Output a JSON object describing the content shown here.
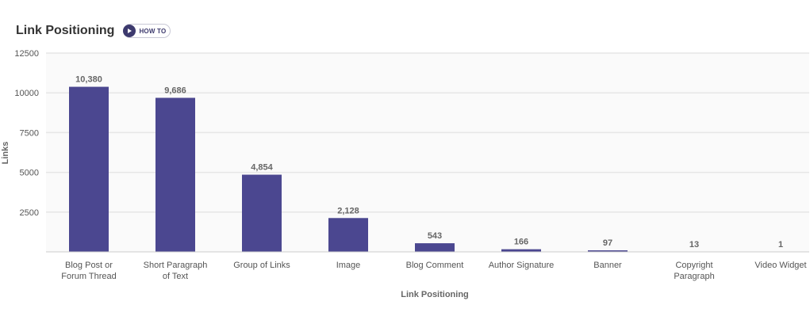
{
  "header": {
    "title": "Link Positioning",
    "howto_label": "HOW TO",
    "howto_icon": "play-icon"
  },
  "colors": {
    "bar": "#4b4790",
    "grid": "#e6e6e6",
    "plot_bg": "#fafafa"
  },
  "chart_data": {
    "type": "bar",
    "xlabel": "Link Positioning",
    "ylabel": "Links",
    "ylim": [
      0,
      12500
    ],
    "yticks": [
      2500,
      5000,
      7500,
      10000,
      12500
    ],
    "grid": true,
    "categories": [
      [
        "Blog Post or",
        "Forum Thread"
      ],
      [
        "Short Paragraph",
        "of Text"
      ],
      [
        "Group of Links"
      ],
      [
        "Image"
      ],
      [
        "Blog Comment"
      ],
      [
        "Author Signature"
      ],
      [
        "Banner"
      ],
      [
        "Copyright",
        "Paragraph"
      ],
      [
        "Video Widget"
      ]
    ],
    "values": [
      10380,
      9686,
      4854,
      2128,
      543,
      166,
      97,
      13,
      1
    ],
    "value_labels": [
      "10,380",
      "9,686",
      "4,854",
      "2,128",
      "543",
      "166",
      "97",
      "13",
      "1"
    ]
  }
}
